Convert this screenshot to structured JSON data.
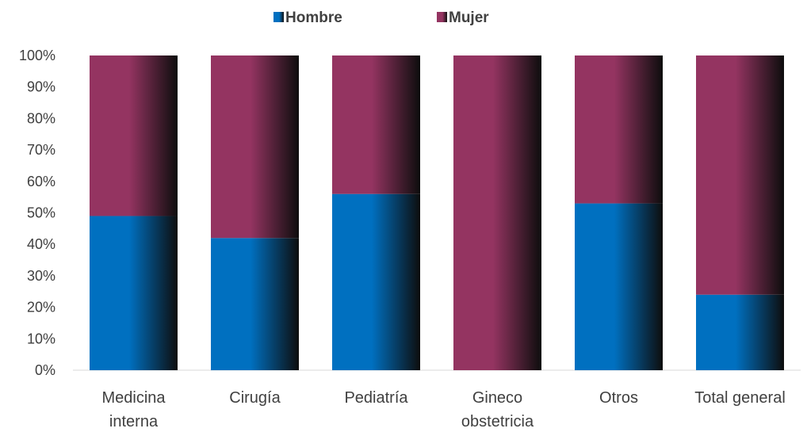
{
  "chart_data": {
    "type": "bar",
    "stacked": true,
    "percent": true,
    "categories": [
      [
        "Medicina",
        "interna"
      ],
      [
        "Cirugía"
      ],
      [
        "Pediatría"
      ],
      [
        "Gineco",
        "obstetricia"
      ],
      [
        "Otros"
      ],
      [
        "Total general"
      ]
    ],
    "series": [
      {
        "name": "Hombre",
        "values": [
          49,
          42,
          56,
          0,
          53,
          24
        ],
        "color": "#0070C0"
      },
      {
        "name": "Mujer",
        "values": [
          51,
          58,
          44,
          100,
          47,
          76
        ],
        "color": "#943461"
      }
    ],
    "ylim": [
      0,
      100
    ],
    "yticks": [
      "0%",
      "10%",
      "20%",
      "30%",
      "40%",
      "50%",
      "60%",
      "70%",
      "80%",
      "90%",
      "100%"
    ],
    "legend_position": "top-center",
    "grid": false,
    "title": "",
    "xlabel": "",
    "ylabel": ""
  }
}
